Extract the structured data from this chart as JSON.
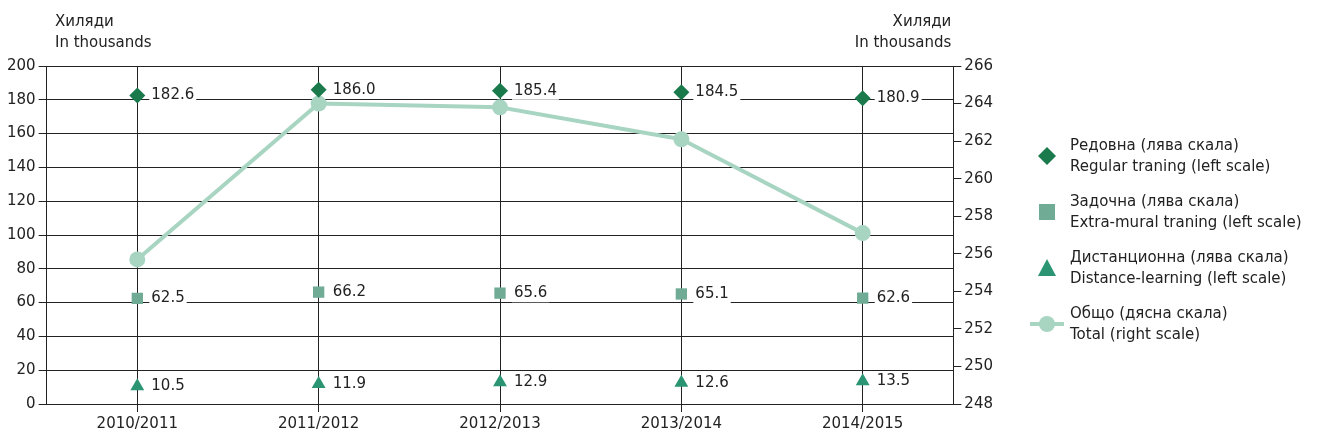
{
  "chart_data": {
    "type": "line",
    "ylabel": "Хиляди\nIn thousands",
    "y2label": "Хиляди\nIn thousands",
    "categories": [
      "2010/2011",
      "2011/2012",
      "2012/2013",
      "2013/2014",
      "2014/2015"
    ],
    "series": [
      {
        "name": "Редовна (лява скала)\nRegular traning (left scale)",
        "type": "scatter",
        "marker": "diamond",
        "color": "#1a7a4c",
        "values": [
          182.6,
          186.0,
          185.4,
          184.5,
          180.9
        ],
        "value_labels": [
          "182.6",
          "186.0",
          "185.4",
          "184.5",
          "180.9"
        ]
      },
      {
        "name": "Задочна (лява скала)\nExtra-mural traning (left scale)",
        "type": "scatter",
        "marker": "square",
        "color": "#6fab95",
        "values": [
          62.5,
          66.2,
          65.6,
          65.1,
          62.6
        ],
        "value_labels": [
          "62.5",
          "66.2",
          "65.6",
          "65.1",
          "62.6"
        ]
      },
      {
        "name": "Дистанционна (лява скала)\nDistance-learning (left scale)",
        "type": "scatter",
        "marker": "triangle",
        "color": "#2a9473",
        "values": [
          10.5,
          11.9,
          12.9,
          12.6,
          13.5
        ],
        "value_labels": [
          "10.5",
          "11.9",
          "12.9",
          "12.6",
          "13.5"
        ]
      },
      {
        "name": "Общо (дясна скала)\nTotal (right scale)",
        "type": "line",
        "marker": "circle",
        "axis": "y2",
        "color": "#a8d5c2",
        "values": [
          255.7,
          264.0,
          263.8,
          262.1,
          257.1
        ]
      }
    ],
    "ylim": [
      0,
      200
    ],
    "yticks": [
      0,
      20,
      40,
      60,
      80,
      100,
      120,
      140,
      160,
      180,
      200
    ],
    "y2lim": [
      248,
      266
    ],
    "y2ticks": [
      248,
      250,
      252,
      254,
      256,
      258,
      260,
      262,
      264,
      266
    ],
    "grid": true,
    "legend": "right"
  }
}
